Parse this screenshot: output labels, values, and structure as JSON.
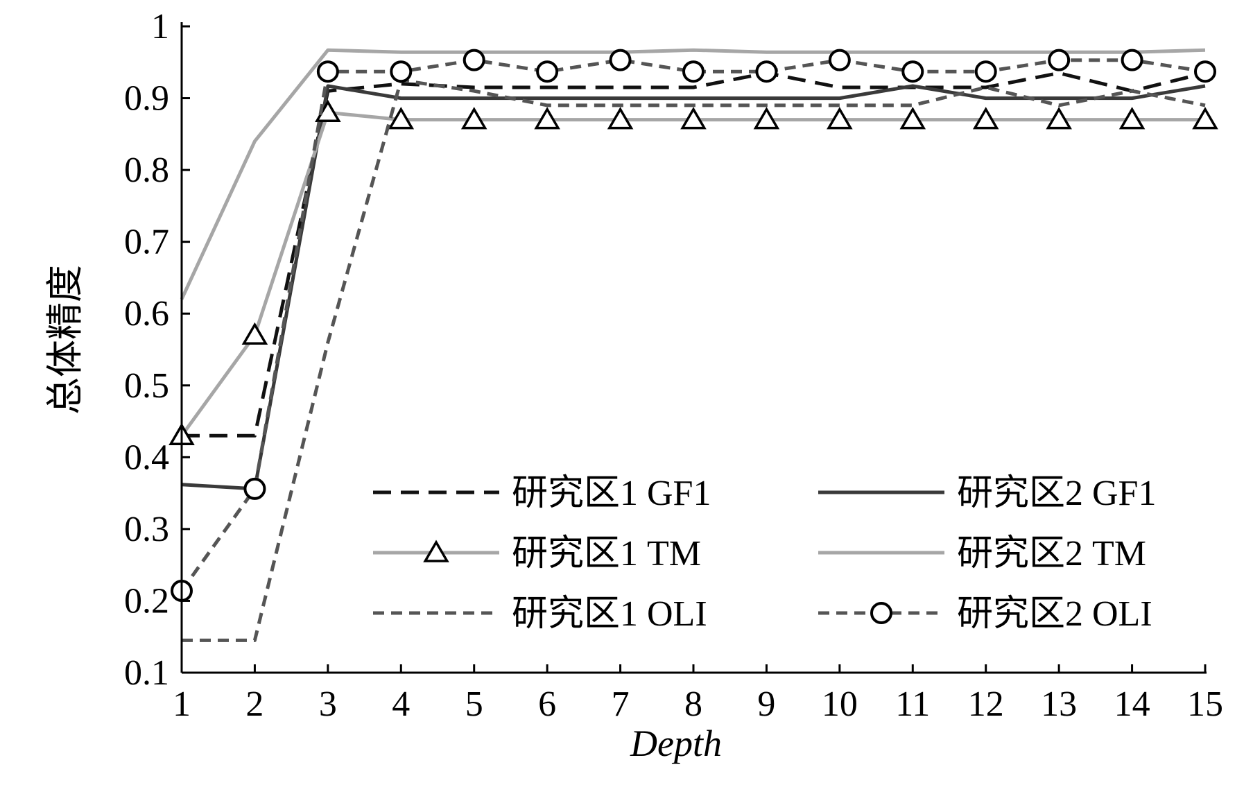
{
  "chart_data": {
    "type": "line",
    "xlabel": "Depth",
    "ylabel": "总体精度",
    "x": [
      1,
      2,
      3,
      4,
      5,
      6,
      7,
      8,
      9,
      10,
      11,
      12,
      13,
      14,
      15
    ],
    "xticks": [
      "1",
      "2",
      "3",
      "4",
      "5",
      "6",
      "7",
      "8",
      "9",
      "10",
      "11",
      "12",
      "13",
      "14",
      "15"
    ],
    "ylim": [
      0.1,
      1
    ],
    "yticks": [
      "0.1",
      "0.2",
      "0.3",
      "0.4",
      "0.5",
      "0.6",
      "0.7",
      "0.8",
      "0.9",
      "1"
    ],
    "grid": false,
    "legend_position": "inside-bottom-right",
    "series": [
      {
        "name": "研究区1 GF1",
        "color": "#111111",
        "dash": "long-dash",
        "marker": "none",
        "values": [
          0.43,
          0.43,
          0.91,
          0.92,
          0.915,
          0.915,
          0.915,
          0.915,
          0.935,
          0.915,
          0.915,
          0.915,
          0.935,
          0.91,
          0.935
        ]
      },
      {
        "name": "研究区2 GF1",
        "color": "#3a3a3a",
        "dash": "solid",
        "marker": "none",
        "values": [
          0.362,
          0.356,
          0.917,
          0.9,
          0.9,
          0.9,
          0.9,
          0.9,
          0.9,
          0.9,
          0.917,
          0.9,
          0.9,
          0.9,
          0.917
        ]
      },
      {
        "name": "研究区1 TM",
        "color": "#a6a6a6",
        "dash": "solid",
        "marker": "triangle",
        "values": [
          0.43,
          0.57,
          0.88,
          0.87,
          0.87,
          0.87,
          0.87,
          0.87,
          0.87,
          0.87,
          0.87,
          0.87,
          0.87,
          0.87,
          0.87
        ]
      },
      {
        "name": "研究区2 TM",
        "color": "#a6a6a6",
        "dash": "solid",
        "marker": "none",
        "values": [
          0.62,
          0.84,
          0.967,
          0.964,
          0.964,
          0.964,
          0.964,
          0.967,
          0.964,
          0.964,
          0.964,
          0.964,
          0.964,
          0.964,
          0.967
        ]
      },
      {
        "name": "研究区1 OLI",
        "color": "#555555",
        "dash": "short-dash",
        "marker": "none",
        "values": [
          0.145,
          0.145,
          0.56,
          0.925,
          0.91,
          0.89,
          0.89,
          0.89,
          0.89,
          0.89,
          0.89,
          0.915,
          0.89,
          0.91,
          0.89
        ]
      },
      {
        "name": "研究区2 OLI",
        "color": "#555555",
        "dash": "short-dash",
        "marker": "circle",
        "values": [
          0.214,
          0.356,
          0.937,
          0.937,
          0.953,
          0.937,
          0.953,
          0.937,
          0.937,
          0.953,
          0.937,
          0.937,
          0.953,
          0.953,
          0.937
        ]
      }
    ]
  }
}
